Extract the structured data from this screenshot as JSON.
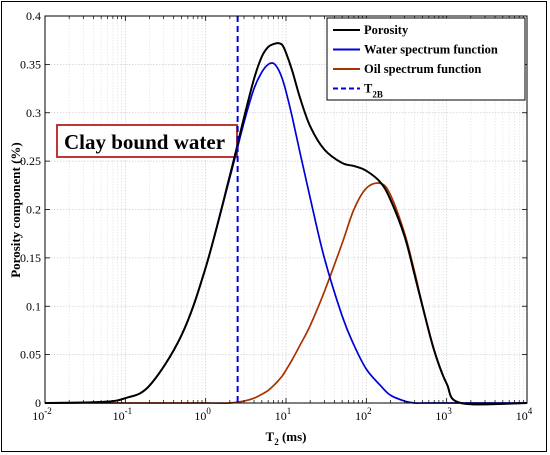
{
  "chart_data": {
    "type": "line",
    "xlabel_main": "T",
    "xlabel_sub": "2",
    "xlabel_unit": " (ms)",
    "ylabel": "Porosity component (%)",
    "xscale": "log",
    "xlim": [
      0.01,
      10000
    ],
    "ylim": [
      0,
      0.4
    ],
    "grid": true,
    "legend_position": "top-right",
    "x_ticks": [
      {
        "base": "10",
        "exp": "-2",
        "value": 0.01
      },
      {
        "base": "10",
        "exp": "-1",
        "value": 0.1
      },
      {
        "base": "10",
        "exp": "0",
        "value": 1
      },
      {
        "base": "10",
        "exp": "1",
        "value": 10
      },
      {
        "base": "10",
        "exp": "2",
        "value": 100
      },
      {
        "base": "10",
        "exp": "3",
        "value": 1000
      },
      {
        "base": "10",
        "exp": "4",
        "value": 10000
      }
    ],
    "y_ticks": [
      "0",
      "0.05",
      "0.1",
      "0.15",
      "0.2",
      "0.25",
      "0.3",
      "0.35",
      "0.4"
    ],
    "series": [
      {
        "name": "Porosity",
        "color": "#000000",
        "x": [
          0.01,
          0.05,
          0.1,
          0.2,
          0.5,
          1,
          2,
          3,
          4,
          5,
          6,
          7,
          8,
          9,
          10,
          12,
          15,
          20,
          30,
          50,
          70,
          100,
          150,
          200,
          300,
          400,
          500,
          700,
          1000,
          1500,
          10000
        ],
        "y": [
          0,
          0.001,
          0.005,
          0.018,
          0.07,
          0.14,
          0.235,
          0.295,
          0.335,
          0.358,
          0.368,
          0.371,
          0.372,
          0.37,
          0.362,
          0.343,
          0.315,
          0.286,
          0.262,
          0.248,
          0.245,
          0.24,
          0.228,
          0.21,
          0.172,
          0.132,
          0.1,
          0.054,
          0.02,
          0,
          0
        ]
      },
      {
        "name": "Water spectrum function",
        "color": "#0000d8",
        "x": [
          0.01,
          0.05,
          0.1,
          0.2,
          0.5,
          1,
          2,
          3,
          4,
          5,
          6,
          7,
          8,
          9,
          10,
          12,
          15,
          20,
          30,
          50,
          70,
          100,
          150,
          200,
          300,
          400,
          500,
          700,
          1000,
          1500,
          10000
        ],
        "y": [
          0,
          0.001,
          0.005,
          0.018,
          0.07,
          0.14,
          0.233,
          0.29,
          0.325,
          0.342,
          0.35,
          0.351,
          0.345,
          0.335,
          0.322,
          0.295,
          0.258,
          0.212,
          0.15,
          0.09,
          0.06,
          0.035,
          0.018,
          0.008,
          0.002,
          0,
          0,
          0,
          0,
          0,
          0
        ]
      },
      {
        "name": "Oil spectrum function",
        "color": "#a83200",
        "x": [
          0.01,
          0.5,
          1,
          2,
          3,
          4,
          5,
          6,
          7,
          8,
          9,
          10,
          12,
          15,
          20,
          30,
          50,
          70,
          100,
          150,
          200,
          300,
          400,
          500,
          700,
          1000,
          1500,
          10000
        ],
        "y": [
          0,
          0,
          0,
          0,
          0.002,
          0.005,
          0.009,
          0.013,
          0.018,
          0.023,
          0.028,
          0.034,
          0.045,
          0.06,
          0.08,
          0.115,
          0.165,
          0.2,
          0.222,
          0.227,
          0.215,
          0.175,
          0.135,
          0.101,
          0.055,
          0.02,
          0,
          0
        ]
      }
    ],
    "t2b": {
      "name": "T",
      "name_sub": "2B",
      "x": 2.5,
      "color": "#0000d8"
    },
    "annotation": "Clay bound water"
  }
}
